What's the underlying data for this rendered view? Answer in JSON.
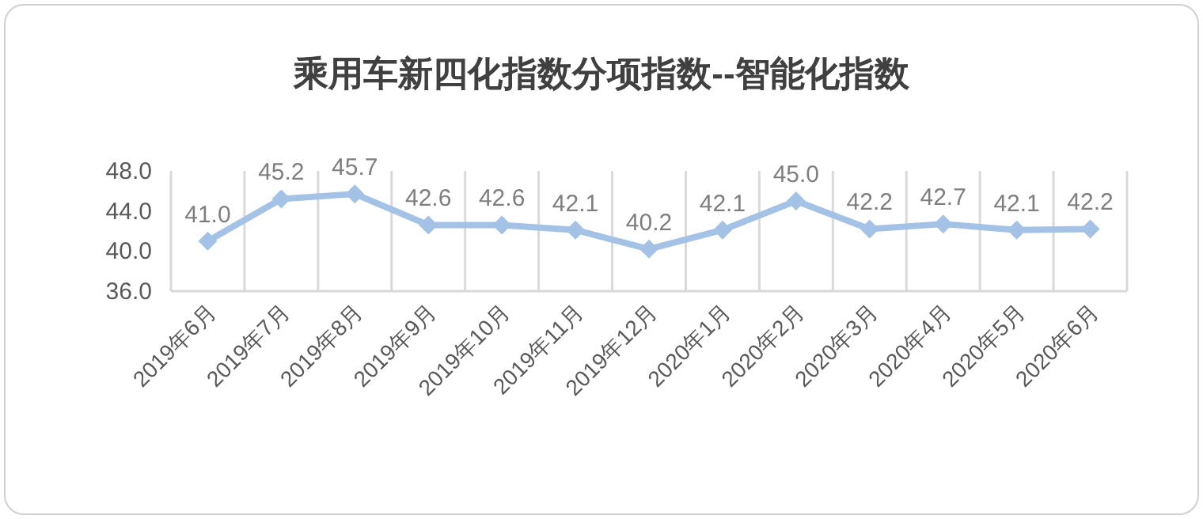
{
  "chart_data": {
    "type": "line",
    "title": "乘用车新四化指数分项指数--智能化指数",
    "categories": [
      "2019年6月",
      "2019年7月",
      "2019年8月",
      "2019年9月",
      "2019年10月",
      "2019年11月",
      "2019年12月",
      "2020年1月",
      "2020年2月",
      "2020年3月",
      "2020年4月",
      "2020年5月",
      "2020年6月"
    ],
    "series": [
      {
        "color": "#a4c2e6",
        "values": [
          41.0,
          45.2,
          45.7,
          42.6,
          42.6,
          42.1,
          40.2,
          42.1,
          45.0,
          42.2,
          42.7,
          42.1,
          42.2
        ],
        "value_labels": [
          "41.0",
          "45.2",
          "45.7",
          "42.6",
          "42.6",
          "42.1",
          "40.2",
          "42.1",
          "45.0",
          "42.2",
          "42.7",
          "42.1",
          "42.2"
        ]
      }
    ],
    "ylim": [
      36,
      48
    ],
    "yticks": [
      {
        "value": 36,
        "label": "36.0"
      },
      {
        "value": 40,
        "label": "40.0"
      },
      {
        "value": 44,
        "label": "44.0"
      },
      {
        "value": 48,
        "label": "48.0"
      }
    ],
    "grid": "x",
    "marker": "diamond"
  }
}
